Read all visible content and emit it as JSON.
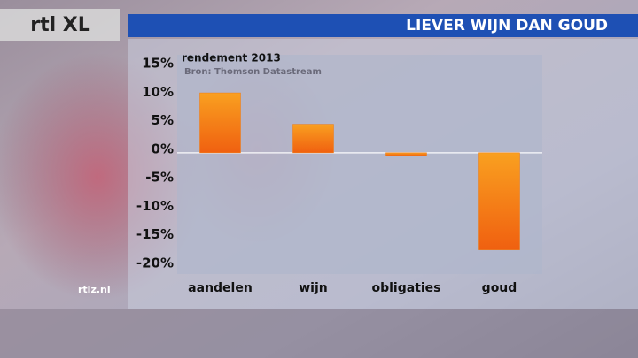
{
  "logo": "rtl XL",
  "website": "rtlz.nl",
  "chart_data": {
    "type": "bar",
    "title": "LIEVER WIJN DAN GOUD",
    "subtitle": "rendement 2013",
    "source": "Bron: Thomson Datastream",
    "categories": [
      "aandelen",
      "wijn",
      "obligaties",
      "goud"
    ],
    "values": [
      10.5,
      5,
      -0.5,
      -17
    ],
    "color": "#f07a10",
    "ylim": [
      -20,
      15
    ],
    "yticks": [
      {
        "value": -20,
        "label": "-20%"
      },
      {
        "value": -15,
        "label": "-15%"
      },
      {
        "value": -10,
        "label": "-10%"
      },
      {
        "value": -5,
        "label": "-5%"
      },
      {
        "value": 0,
        "label": "0%"
      },
      {
        "value": 5,
        "label": "5%"
      },
      {
        "value": 10,
        "label": "10%"
      },
      {
        "value": 15,
        "label": "15%"
      }
    ],
    "grid": false
  }
}
